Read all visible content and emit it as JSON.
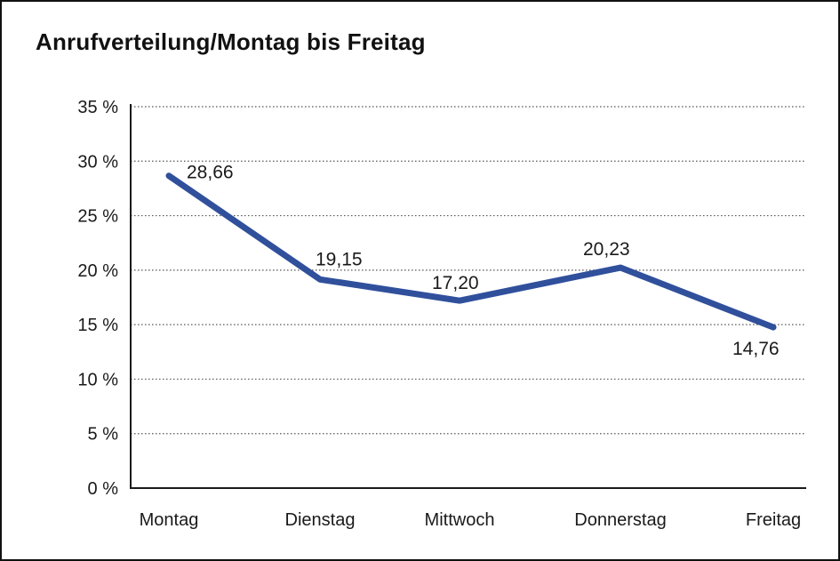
{
  "window": {
    "title": "Anrufverteilung/Montag bis Freitag"
  },
  "chart_data": {
    "type": "line",
    "title": "Anrufverteilung/Montag bis Freitag",
    "categories": [
      "Montag",
      "Dienstag",
      "Mittwoch",
      "Donnerstag",
      "Freitag"
    ],
    "series": [
      {
        "name": "Anrufverteilung",
        "values": [
          28.66,
          19.15,
          17.2,
          20.23,
          14.76
        ]
      }
    ],
    "value_labels": [
      "28,66",
      "19,15",
      "17,20",
      "20,23",
      "14,76"
    ],
    "y_tick_labels": [
      "35 %",
      "30 %",
      "25 %",
      "20 %",
      "15 %",
      "10 %",
      "5 %",
      "0 %"
    ],
    "y_tick_values": [
      35,
      30,
      25,
      20,
      15,
      10,
      5,
      0
    ],
    "ylim": [
      0,
      35
    ],
    "xlabel": "",
    "ylabel": "",
    "grid": "horizontal-dotted",
    "legend": "none",
    "colors": {
      "line": "#30509c",
      "axis": "#1a1a1a",
      "gridline": "#555555",
      "text": "#1a1a1a",
      "background": "#ffffff",
      "frame_border": "#111111"
    }
  }
}
